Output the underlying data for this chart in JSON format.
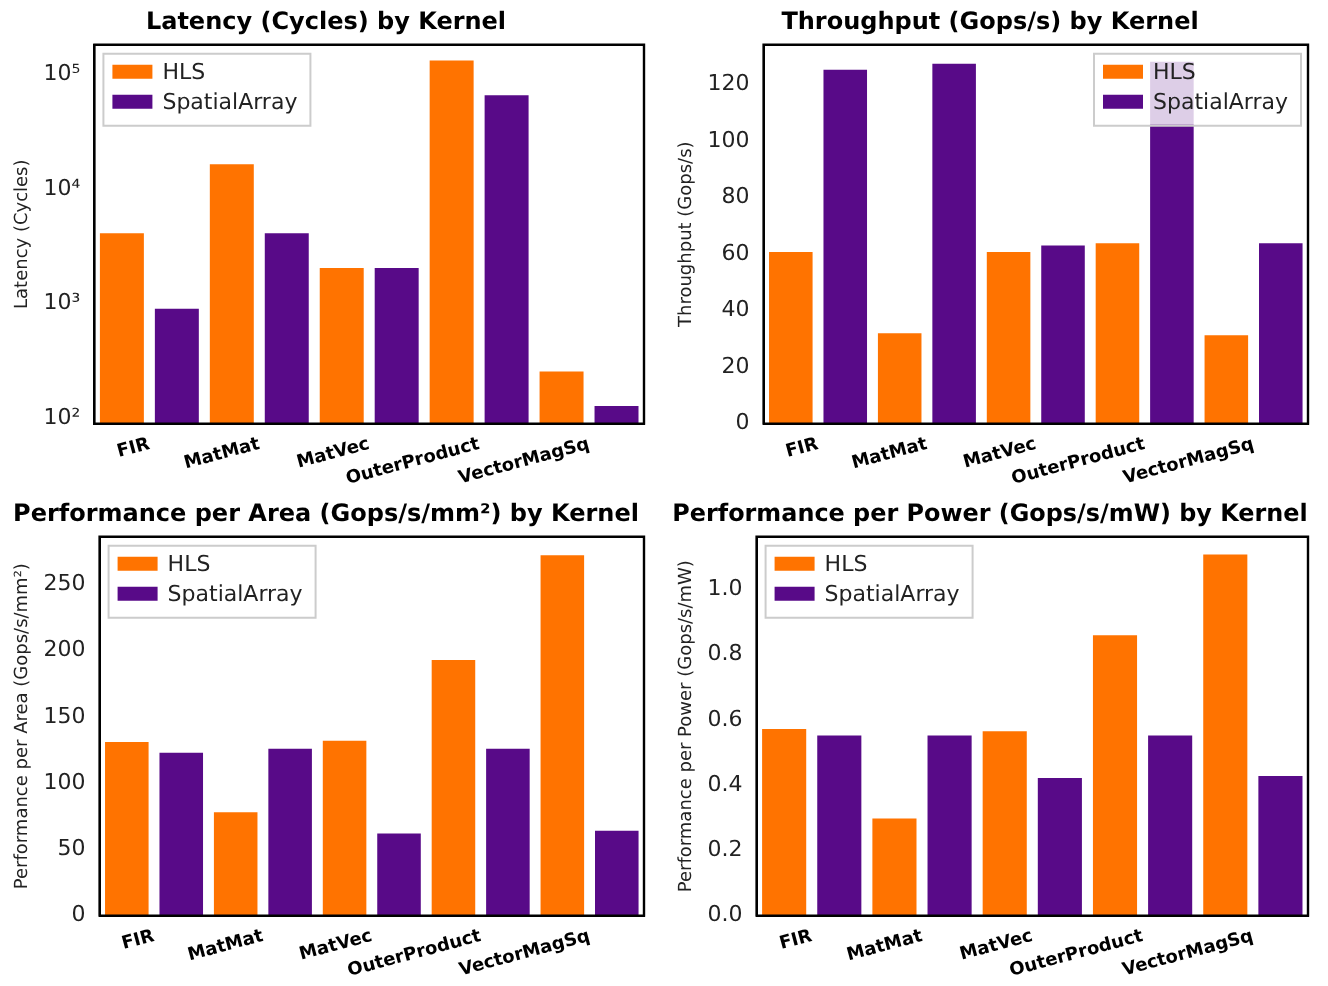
{
  "chart_data": [
    {
      "type": "bar",
      "title": "Latency (Cycles) by Kernel",
      "ylabel": "Latency (Cycles)",
      "categories": [
        "FIR",
        "MatMat",
        "MatVec",
        "OuterProduct",
        "VectorMagSq"
      ],
      "log": "y",
      "ylim": [
        90,
        180000
      ],
      "yticks": [
        {
          "value": 100,
          "label": "10²"
        },
        {
          "value": 1000,
          "label": "10³"
        },
        {
          "value": 10000,
          "label": "10⁴"
        },
        {
          "value": 100000,
          "label": "10⁵"
        }
      ],
      "grid": false,
      "legend": "top left",
      "series": [
        {
          "name": "HLS",
          "color": "#ff7300",
          "values": [
            4096,
            16384,
            2048,
            131072,
            256
          ]
        },
        {
          "name": "SpatialArray",
          "color": "#580a88",
          "values": [
            900,
            4096,
            2048,
            65536,
            128
          ]
        }
      ]
    },
    {
      "type": "bar",
      "title": "Throughput (Gops/s) by Kernel",
      "ylabel": "Throughput (Gops/s)",
      "categories": [
        "FIR",
        "MatMat",
        "MatVec",
        "OuterProduct",
        "VectorMagSq"
      ],
      "ylim": [
        0,
        134
      ],
      "yticks": [
        0,
        20,
        40,
        60,
        80,
        100,
        120
      ],
      "grid": false,
      "legend": "top right",
      "series": [
        {
          "name": "HLS",
          "color": "#ff7300",
          "values": [
            60.7,
            32,
            60.7,
            63.8,
            31.3
          ]
        },
        {
          "name": "SpatialArray",
          "color": "#580a88",
          "values": [
            125.2,
            127.3,
            63,
            128,
            63.8
          ]
        }
      ]
    },
    {
      "type": "bar",
      "title": "Performance per Area (Gops/s/mm²) by Kernel",
      "ylabel": "Performance per Area (Gops/s/mm²)",
      "categories": [
        "FIR",
        "MatMat",
        "MatVec",
        "OuterProduct",
        "VectorMagSq"
      ],
      "ylim": [
        0,
        286
      ],
      "yticks": [
        0,
        50,
        100,
        150,
        200,
        250
      ],
      "grid": false,
      "legend": "top left",
      "series": [
        {
          "name": "HLS",
          "color": "#ff7300",
          "values": [
            131,
            78,
            132,
            193,
            272
          ]
        },
        {
          "name": "SpatialArray",
          "color": "#580a88",
          "values": [
            123,
            126,
            62,
            126,
            64
          ]
        }
      ]
    },
    {
      "type": "bar",
      "title": "Performance per Power (Gops/s/mW) by Kernel",
      "ylabel": "Performance per Power (Gops/s/mW)",
      "categories": [
        "FIR",
        "MatMat",
        "MatVec",
        "OuterProduct",
        "VectorMagSq"
      ],
      "ylim": [
        0,
        1.161
      ],
      "yticks": [
        {
          "value": 0,
          "label": "0.0"
        },
        {
          "value": 0.2,
          "label": "0.2"
        },
        {
          "value": 0.4,
          "label": "0.4"
        },
        {
          "value": 0.6,
          "label": "0.6"
        },
        {
          "value": 0.8,
          "label": "0.8"
        },
        {
          "value": 1,
          "label": "1.0"
        }
      ],
      "grid": false,
      "legend": "top left",
      "series": [
        {
          "name": "HLS",
          "color": "#ff7300",
          "values": [
            0.572,
            0.298,
            0.565,
            0.859,
            1.107
          ]
        },
        {
          "name": "SpatialArray",
          "color": "#580a88",
          "values": [
            0.552,
            0.552,
            0.422,
            0.552,
            0.428
          ]
        }
      ]
    }
  ]
}
